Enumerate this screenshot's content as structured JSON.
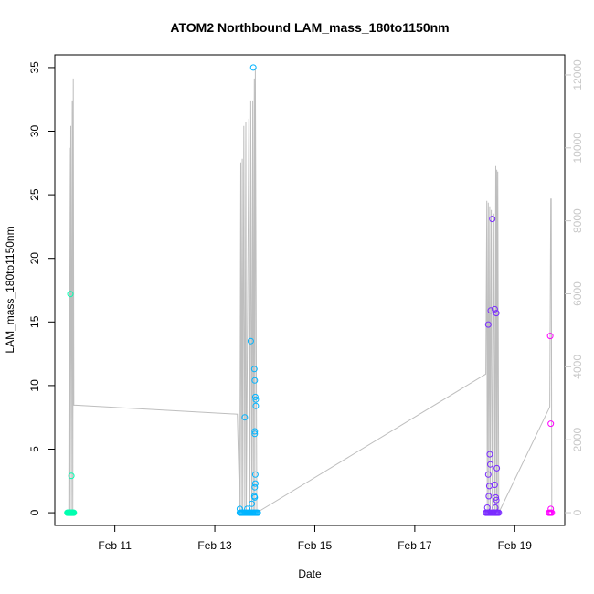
{
  "chart_data": {
    "type": "scatter",
    "title": "ATOM2 Northbound LAM_mass_180to1150nm",
    "xlabel": "Date",
    "ylabel": "LAM_mass_180to1150nm",
    "x_tick_labels": [
      "Feb 11",
      "Feb 13",
      "Feb 15",
      "Feb 17",
      "Feb 19"
    ],
    "x_tick_values": [
      11,
      13,
      15,
      17,
      19
    ],
    "xlim": [
      9.8,
      20.0
    ],
    "ylim": [
      -1.0,
      36.0
    ],
    "y_ticks": [
      0,
      5,
      10,
      15,
      20,
      25,
      30,
      35
    ],
    "y2_ticks": [
      0,
      2000,
      4000,
      6000,
      8000,
      10000,
      12000
    ],
    "y2lim": [
      -350,
      12550
    ],
    "right_axis_color": "#c8c8c8",
    "line_color": "#bebebe",
    "secondary_line": [
      [
        10.08,
        0
      ],
      [
        10.09,
        10000
      ],
      [
        10.1,
        0
      ],
      [
        10.12,
        10600
      ],
      [
        10.13,
        0
      ],
      [
        10.15,
        11300
      ],
      [
        10.16,
        0
      ],
      [
        10.17,
        11900
      ],
      [
        10.18,
        2950
      ],
      [
        13.45,
        2700
      ],
      [
        13.5,
        0
      ],
      [
        13.52,
        9600
      ],
      [
        13.53,
        0
      ],
      [
        13.55,
        9700
      ],
      [
        13.56,
        0
      ],
      [
        13.58,
        10600
      ],
      [
        13.6,
        0
      ],
      [
        13.62,
        10700
      ],
      [
        13.63,
        0
      ],
      [
        13.68,
        10800
      ],
      [
        13.7,
        0
      ],
      [
        13.72,
        11300
      ],
      [
        13.74,
        0
      ],
      [
        13.76,
        11300
      ],
      [
        13.77,
        0
      ],
      [
        13.79,
        11900
      ],
      [
        13.8,
        0
      ],
      [
        13.81,
        12200
      ],
      [
        13.84,
        0
      ],
      [
        18.42,
        3800
      ],
      [
        18.44,
        8550
      ],
      [
        18.45,
        0
      ],
      [
        18.47,
        8500
      ],
      [
        18.48,
        0
      ],
      [
        18.5,
        8400
      ],
      [
        18.51,
        0
      ],
      [
        18.53,
        8300
      ],
      [
        18.55,
        0
      ],
      [
        18.58,
        8200
      ],
      [
        18.6,
        0
      ],
      [
        18.62,
        9500
      ],
      [
        18.63,
        0
      ],
      [
        18.64,
        9400
      ],
      [
        18.65,
        0
      ],
      [
        18.66,
        9350
      ],
      [
        18.68,
        0
      ],
      [
        19.7,
        2900
      ],
      [
        19.72,
        8600
      ],
      [
        19.73,
        8600
      ],
      [
        19.74,
        0
      ]
    ],
    "series": [
      {
        "color": "#00ffb0",
        "x": [
          10.05,
          10.06,
          10.07,
          10.08,
          10.09,
          10.1,
          10.11,
          10.12,
          10.13,
          10.14,
          10.15,
          10.16,
          10.17,
          10.18,
          10.11,
          10.13
        ],
        "y": [
          0,
          0,
          0,
          0,
          0,
          0,
          0,
          0,
          0,
          0,
          0,
          0,
          0,
          0,
          17.2,
          2.9
        ]
      },
      {
        "color": "#00b4ff",
        "x": [
          13.5,
          13.52,
          13.54,
          13.56,
          13.58,
          13.6,
          13.62,
          13.64,
          13.66,
          13.68,
          13.7,
          13.72,
          13.74,
          13.76,
          13.78,
          13.8,
          13.82,
          13.84,
          13.86,
          13.5,
          13.6,
          13.65,
          13.72,
          13.74,
          13.77,
          13.79,
          13.8,
          13.81,
          13.82,
          13.82,
          13.8,
          13.8,
          13.81,
          13.81,
          13.8,
          13.79,
          13.8
        ],
        "y": [
          0,
          0,
          0,
          0,
          0,
          0,
          0,
          0,
          0,
          0,
          0,
          0,
          0,
          0,
          0,
          0,
          0,
          0,
          0,
          0.3,
          7.5,
          0.3,
          13.5,
          0.7,
          35.0,
          11.3,
          10.4,
          9.1,
          8.9,
          8.4,
          6.4,
          6.2,
          3.0,
          2.3,
          2.0,
          1.3,
          1.2
        ]
      },
      {
        "color": "#7a2bff",
        "x": [
          18.42,
          18.44,
          18.46,
          18.48,
          18.5,
          18.52,
          18.54,
          18.56,
          18.58,
          18.6,
          18.62,
          18.64,
          18.66,
          18.68,
          18.47,
          18.52,
          18.55,
          18.6,
          18.63,
          18.64,
          18.5,
          18.47,
          18.49,
          18.6,
          18.62,
          18.48,
          18.51,
          18.63,
          18.45,
          18.61
        ],
        "y": [
          0,
          0,
          0,
          0,
          0,
          0,
          0,
          0,
          0,
          0,
          0,
          0,
          0,
          0,
          14.8,
          15.9,
          23.1,
          16.0,
          15.7,
          3.5,
          4.6,
          3.0,
          2.1,
          2.2,
          1.2,
          1.3,
          3.8,
          1.0,
          0.4,
          0.4
        ]
      },
      {
        "color": "#ff00ff",
        "x": [
          19.68,
          19.7,
          19.72,
          19.74,
          19.71,
          19.72,
          19.72
        ],
        "y": [
          0,
          0,
          0,
          0,
          13.9,
          7.0,
          0.3
        ]
      }
    ]
  }
}
